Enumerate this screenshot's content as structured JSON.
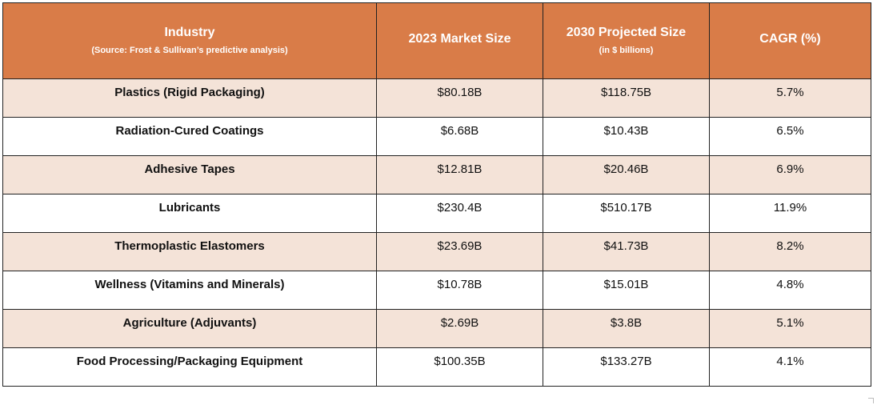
{
  "table": {
    "headers": [
      {
        "label": "Industry",
        "sub": "(Source: Frost & Sullivan’s predictive analysis)"
      },
      {
        "label": "2023 Market Size",
        "sub": ""
      },
      {
        "label": "2030 Projected Size",
        "sub": "(in $ billions)"
      },
      {
        "label": "CAGR (%)",
        "sub": ""
      }
    ],
    "rows": [
      {
        "industry": "Plastics (Rigid Packaging)",
        "size_2023": "$80.18B",
        "size_2030": "$118.75B",
        "cagr": "5.7%"
      },
      {
        "industry": "Radiation-Cured Coatings",
        "size_2023": "$6.68B",
        "size_2030": "$10.43B",
        "cagr": "6.5%"
      },
      {
        "industry": "Adhesive Tapes",
        "size_2023": "$12.81B",
        "size_2030": "$20.46B",
        "cagr": "6.9%"
      },
      {
        "industry": "Lubricants",
        "size_2023": "$230.4B",
        "size_2030": "$510.17B",
        "cagr": "11.9%"
      },
      {
        "industry": "Thermoplastic Elastomers",
        "size_2023": "$23.69B",
        "size_2030": "$41.73B",
        "cagr": "8.2%"
      },
      {
        "industry": "Wellness (Vitamins and Minerals)",
        "size_2023": "$10.78B",
        "size_2030": "$15.01B",
        "cagr": "4.8%"
      },
      {
        "industry": "Agriculture (Adjuvants)",
        "size_2023": "$2.69B",
        "size_2030": "$3.8B",
        "cagr": "5.1%"
      },
      {
        "industry": "Food Processing/Packaging Equipment",
        "size_2023": "$100.35B",
        "size_2030": "$133.27B",
        "cagr": "4.1%"
      }
    ]
  },
  "colors": {
    "header_bg": "#d97c48",
    "shaded_row_bg": "#f4e3d8",
    "plain_row_bg": "#ffffff"
  }
}
